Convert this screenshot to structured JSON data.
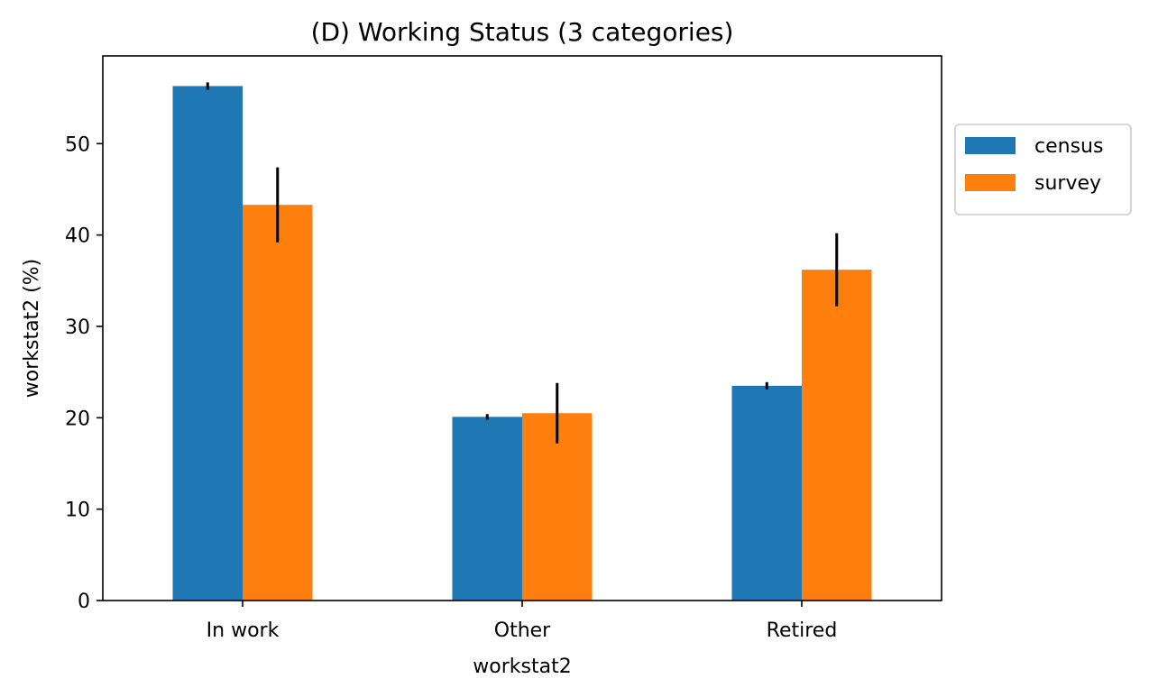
{
  "chart_data": {
    "type": "bar",
    "title": "(D) Working Status (3 categories)",
    "xlabel": "workstat2",
    "ylabel": "workstat2 (%)",
    "categories": [
      "In work",
      "Other",
      "Retired"
    ],
    "ylim": [
      0,
      59.6
    ],
    "yticks": [
      0,
      10,
      20,
      30,
      40,
      50
    ],
    "grid": false,
    "legend_position": "outside-right-top",
    "series": [
      {
        "name": "census",
        "color": "#1f77b4",
        "values": [
          56.3,
          20.1,
          23.5
        ],
        "error": [
          0.4,
          0.3,
          0.4
        ]
      },
      {
        "name": "survey",
        "color": "#ff7f0e",
        "values": [
          43.3,
          20.5,
          36.2
        ],
        "error": [
          4.1,
          3.3,
          4.0
        ]
      }
    ]
  }
}
